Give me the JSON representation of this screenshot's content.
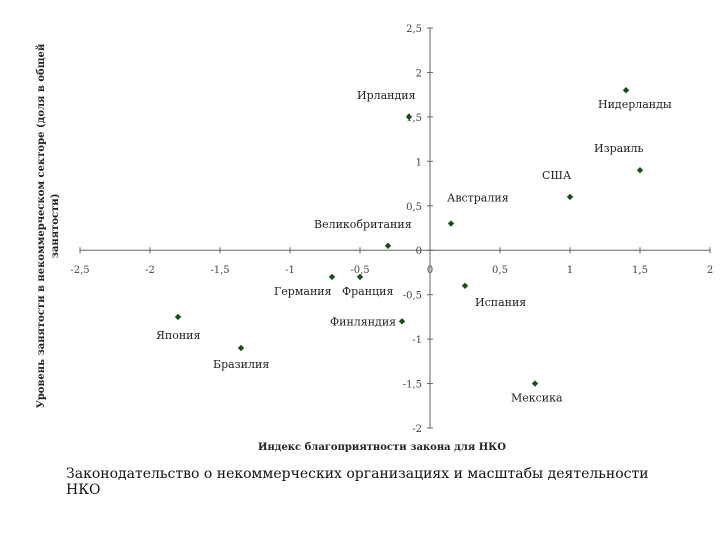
{
  "chart_data": {
    "type": "scatter",
    "title": "",
    "xlabel": "Индекс благоприятности закона для НКО",
    "ylabel_lines": [
      "Уровень занятости в некоммерческом секторе (доля в общей",
      "занятости)"
    ],
    "xlim": [
      -2.5,
      2
    ],
    "ylim": [
      -2,
      2.5
    ],
    "xticks": [
      "-2,5",
      "-2",
      "-1,5",
      "-1",
      "-0,5",
      "0",
      "0,5",
      "1",
      "1,5",
      "2"
    ],
    "yticks": [
      "-2",
      "-1,5",
      "-1",
      "-0,5",
      "0",
      "0,5",
      "1",
      "1,5",
      "2",
      "2,5"
    ],
    "marker_color": "#1a4d1a",
    "grid": false,
    "points": [
      {
        "name": "Нидерланды",
        "x": 1.4,
        "y": 1.8
      },
      {
        "name": "Ирландия",
        "x": -0.15,
        "y": 1.5
      },
      {
        "name": "Израиль",
        "x": 1.5,
        "y": 0.9
      },
      {
        "name": "США",
        "x": 1.0,
        "y": 0.6
      },
      {
        "name": "Австралия",
        "x": 0.15,
        "y": 0.3
      },
      {
        "name": "Великобритания",
        "x": -0.3,
        "y": 0.05
      },
      {
        "name": "Германия",
        "x": -0.7,
        "y": -0.3
      },
      {
        "name": "Франция",
        "x": -0.5,
        "y": -0.3
      },
      {
        "name": "Испания",
        "x": 0.25,
        "y": -0.4
      },
      {
        "name": "Финляндия",
        "x": -0.2,
        "y": -0.8
      },
      {
        "name": "Япония",
        "x": -1.8,
        "y": -0.75
      },
      {
        "name": "Бразилия",
        "x": -1.35,
        "y": -1.1
      },
      {
        "name": "Мексика",
        "x": 0.75,
        "y": -1.5
      }
    ]
  },
  "caption": "Законодательство о некоммерческих организациях и масштабы деятельности НКО"
}
